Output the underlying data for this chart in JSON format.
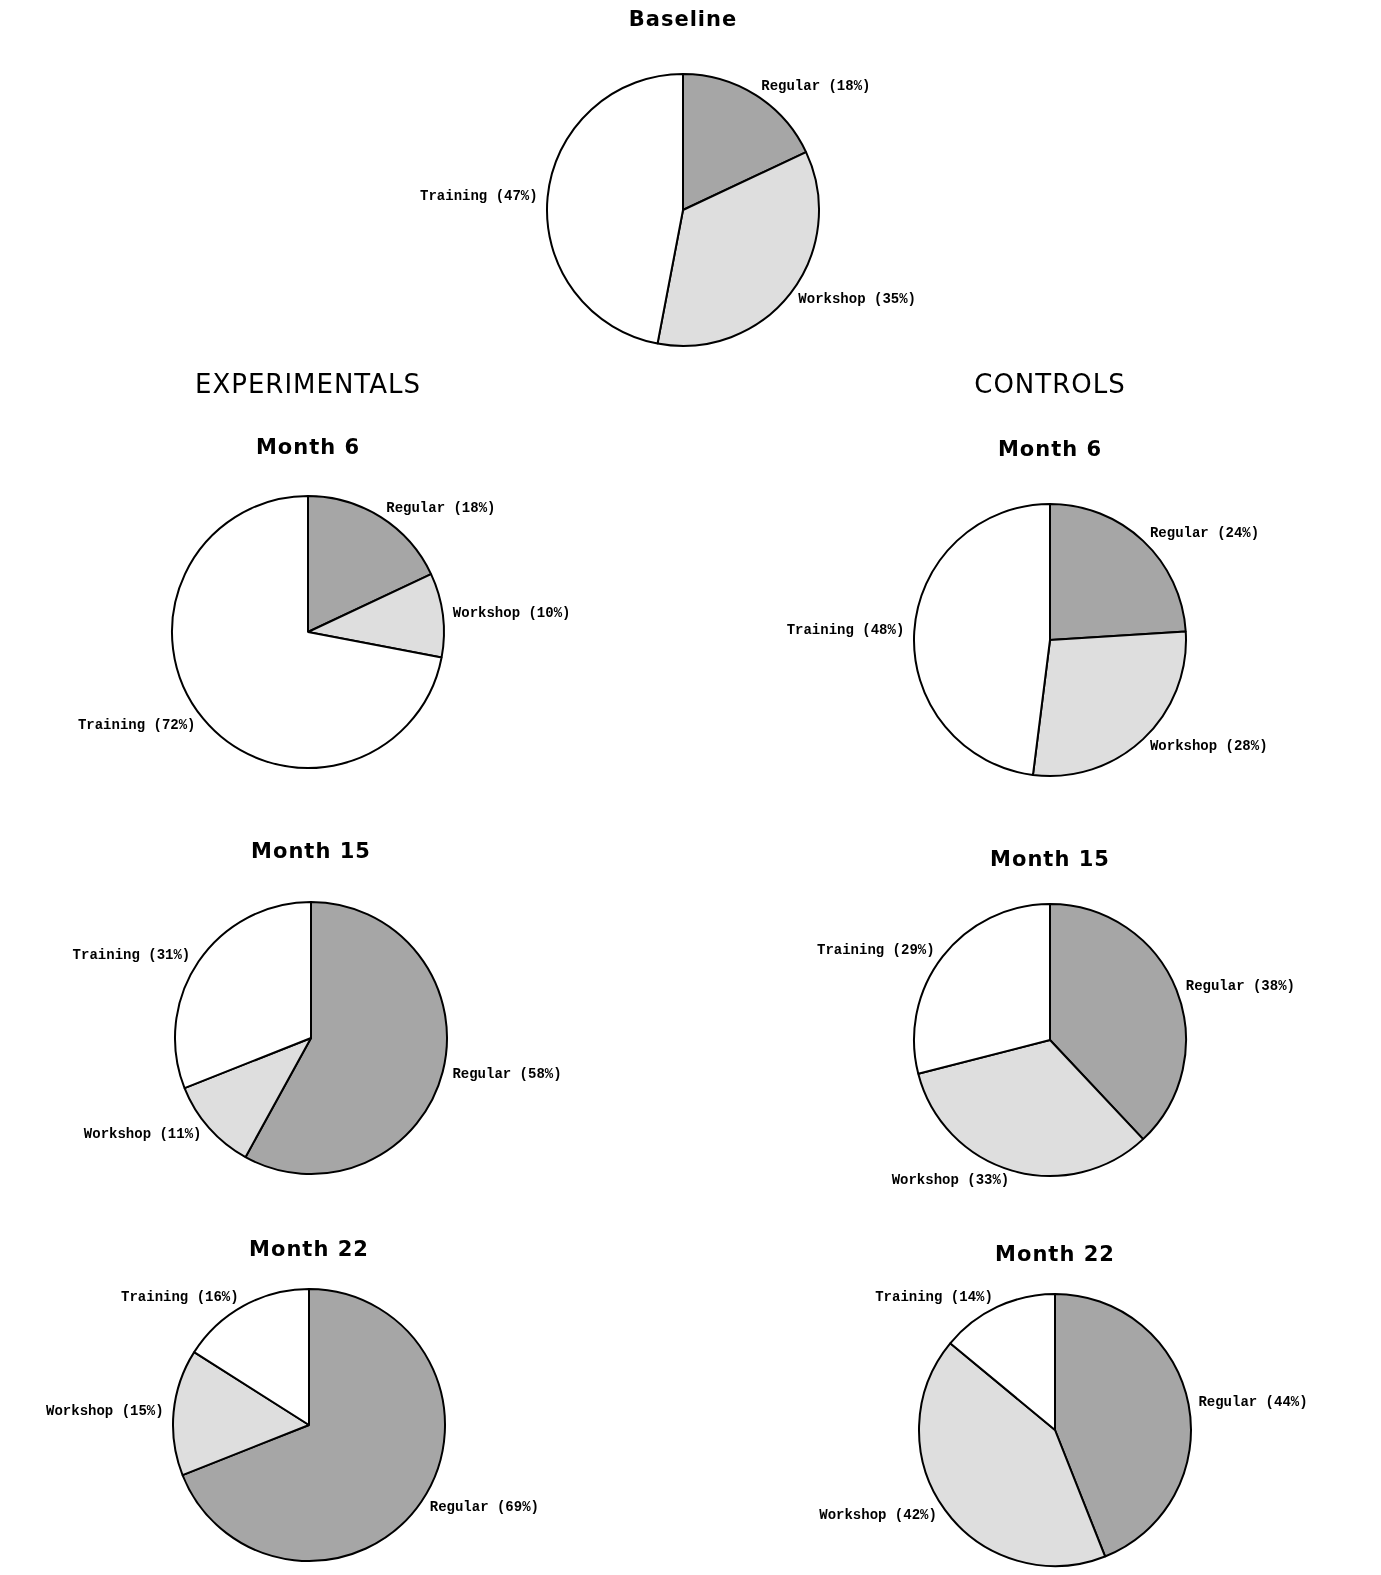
{
  "chart_data": [
    {
      "type": "pie",
      "title": "Baseline",
      "categories": [
        "Regular",
        "Workshop",
        "Training"
      ],
      "values": [
        18,
        35,
        47
      ],
      "value_labels": [
        "(18%)",
        "(35%)",
        "(47%)"
      ],
      "colors": [
        "#a6a6a6",
        "#dedede",
        "#ffffff"
      ],
      "legend": false
    },
    {
      "type": "pie",
      "title": "Month 6",
      "annotations": [
        "EXPERIMENTALS"
      ],
      "categories": [
        "Regular",
        "Workshop",
        "Training"
      ],
      "values": [
        18,
        10,
        72
      ],
      "value_labels": [
        "(18%)",
        "(10%)",
        "(72%)"
      ],
      "colors": [
        "#a6a6a6",
        "#dedede",
        "#ffffff"
      ],
      "legend": false
    },
    {
      "type": "pie",
      "title": "Month 6",
      "annotations": [
        "CONTROLS"
      ],
      "categories": [
        "Regular",
        "Workshop",
        "Training"
      ],
      "values": [
        24,
        28,
        48
      ],
      "value_labels": [
        "(24%)",
        "(28%)",
        "(48%)"
      ],
      "colors": [
        "#a6a6a6",
        "#dedede",
        "#ffffff"
      ],
      "legend": false
    },
    {
      "type": "pie",
      "title": "Month 15",
      "categories": [
        "Regular",
        "Workshop",
        "Training"
      ],
      "values": [
        58,
        11,
        31
      ],
      "value_labels": [
        "(58%)",
        "(11%)",
        "(31%)"
      ],
      "colors": [
        "#a6a6a6",
        "#dedede",
        "#ffffff"
      ],
      "legend": false
    },
    {
      "type": "pie",
      "title": "Month 15",
      "categories": [
        "Regular",
        "Workshop",
        "Training"
      ],
      "values": [
        38,
        33,
        29
      ],
      "value_labels": [
        "(38%)",
        "(33%)",
        "(29%)"
      ],
      "colors": [
        "#a6a6a6",
        "#dedede",
        "#ffffff"
      ],
      "legend": false
    },
    {
      "type": "pie",
      "title": "Month 22",
      "categories": [
        "Regular",
        "Workshop",
        "Training"
      ],
      "values": [
        69,
        15,
        16
      ],
      "value_labels": [
        "(69%)",
        "(15%)",
        "(16%)"
      ],
      "colors": [
        "#a6a6a6",
        "#dedede",
        "#ffffff"
      ],
      "legend": false
    },
    {
      "type": "pie",
      "title": "Month 22",
      "categories": [
        "Regular",
        "Workshop",
        "Training"
      ],
      "values": [
        44,
        42,
        14
      ],
      "value_labels": [
        "(44%)",
        "(42%)",
        "(14%)"
      ],
      "colors": [
        "#a6a6a6",
        "#dedede",
        "#ffffff"
      ],
      "legend": false
    }
  ]
}
